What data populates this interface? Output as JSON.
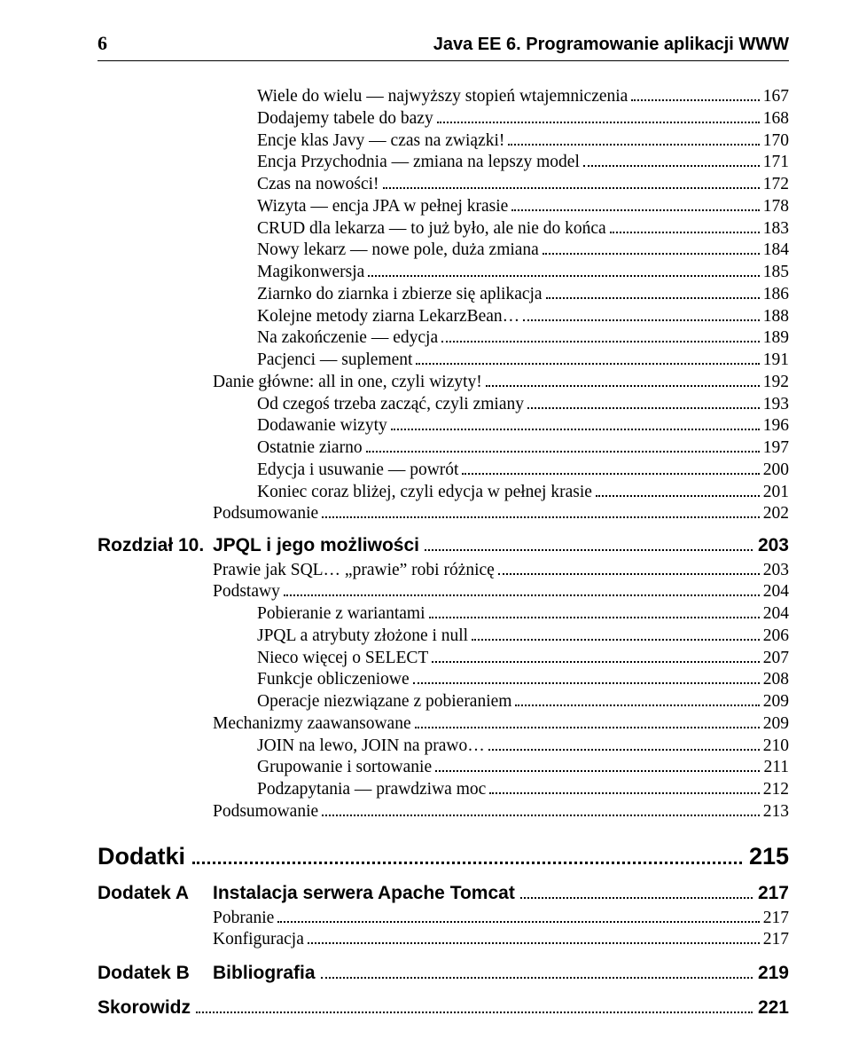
{
  "page_number": "6",
  "book_title": "Java EE 6. Programowanie aplikacji WWW",
  "group1": [
    {
      "lvl": 2,
      "label": "Wiele do wielu — najwyższy stopień wtajemniczenia",
      "pg": "167"
    },
    {
      "lvl": 2,
      "label": "Dodajemy tabele do bazy",
      "pg": "168"
    },
    {
      "lvl": 2,
      "label": "Encje klas Javy — czas na związki!",
      "pg": "170"
    },
    {
      "lvl": 2,
      "label": "Encja Przychodnia — zmiana na lepszy model",
      "pg": "171"
    },
    {
      "lvl": 2,
      "label": "Czas na nowości!",
      "pg": "172"
    },
    {
      "lvl": 2,
      "label": "Wizyta — encja JPA w pełnej krasie",
      "pg": "178"
    },
    {
      "lvl": 2,
      "label": "CRUD dla lekarza — to już było, ale nie do końca",
      "pg": "183"
    },
    {
      "lvl": 2,
      "label": "Nowy lekarz — nowe pole, duża zmiana",
      "pg": "184"
    },
    {
      "lvl": 2,
      "label": "Magikonwersja",
      "pg": "185"
    },
    {
      "lvl": 2,
      "label": "Ziarnko do ziarnka i zbierze się aplikacja",
      "pg": "186"
    },
    {
      "lvl": 2,
      "label": "Kolejne metody ziarna LekarzBean…",
      "pg": "188"
    },
    {
      "lvl": 2,
      "label": "Na zakończenie — edycja",
      "pg": "189"
    },
    {
      "lvl": 2,
      "label": "Pacjenci — suplement",
      "pg": "191"
    },
    {
      "lvl": 1,
      "label": "Danie główne: all in one, czyli wizyty!",
      "pg": "192"
    },
    {
      "lvl": 2,
      "label": "Od czegoś trzeba zacząć, czyli zmiany",
      "pg": "193"
    },
    {
      "lvl": 2,
      "label": "Dodawanie wizyty",
      "pg": "196"
    },
    {
      "lvl": 2,
      "label": "Ostatnie ziarno",
      "pg": "197"
    },
    {
      "lvl": 2,
      "label": "Edycja i usuwanie — powrót",
      "pg": "200"
    },
    {
      "lvl": 2,
      "label": "Koniec coraz bliżej, czyli edycja w pełnej krasie",
      "pg": "201"
    },
    {
      "lvl": 1,
      "label": "Podsumowanie",
      "pg": "202"
    }
  ],
  "chapter": {
    "prefix": "Rozdział 10.",
    "title": "JPQL i jego możliwości",
    "pg": "203"
  },
  "group2": [
    {
      "lvl": 1,
      "label": "Prawie jak SQL… „prawie” robi różnicę",
      "pg": "203"
    },
    {
      "lvl": 1,
      "label": "Podstawy",
      "pg": "204"
    },
    {
      "lvl": 2,
      "label": "Pobieranie z wariantami",
      "pg": "204"
    },
    {
      "lvl": 2,
      "label": "JPQL a atrybuty złożone i null",
      "pg": "206"
    },
    {
      "lvl": 2,
      "label": "Nieco więcej o SELECT",
      "pg": "207"
    },
    {
      "lvl": 2,
      "label": "Funkcje obliczeniowe",
      "pg": "208"
    },
    {
      "lvl": 2,
      "label": "Operacje niezwiązane z pobieraniem",
      "pg": "209"
    },
    {
      "lvl": 1,
      "label": "Mechanizmy zaawansowane",
      "pg": "209"
    },
    {
      "lvl": 2,
      "label": "JOIN na lewo, JOIN na prawo…",
      "pg": "210"
    },
    {
      "lvl": 2,
      "label": "Grupowanie i sortowanie",
      "pg": "211"
    },
    {
      "lvl": 2,
      "label": "Podzapytania — prawdziwa moc",
      "pg": "212"
    },
    {
      "lvl": 1,
      "label": "Podsumowanie",
      "pg": "213"
    }
  ],
  "part": {
    "title": "Dodatki",
    "pg": "215"
  },
  "appendix_a": {
    "prefix": "Dodatek A",
    "title": "Instalacja serwera Apache Tomcat",
    "pg": "217"
  },
  "group3": [
    {
      "lvl": 1,
      "label": "Pobranie",
      "pg": "217"
    },
    {
      "lvl": 1,
      "label": "Konfiguracja",
      "pg": "217"
    }
  ],
  "appendix_b": {
    "prefix": "Dodatek B",
    "title": "Bibliografia",
    "pg": "219"
  },
  "index": {
    "title": "Skorowidz",
    "pg": "221"
  }
}
